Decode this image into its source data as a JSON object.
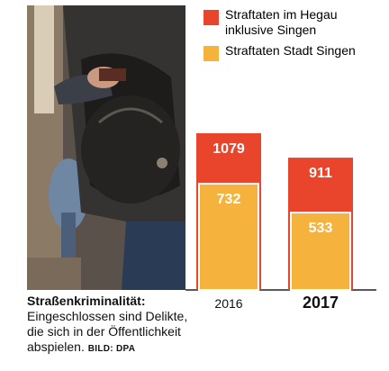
{
  "legend": [
    {
      "label": "Straftaten im Hegau inklusive Singen",
      "color": "#e8452c"
    },
    {
      "label": "Straftaten Stadt Singen",
      "color": "#f5b23c"
    }
  ],
  "caption": {
    "title": "Straßenkriminalität:",
    "text": "Eingeschlossen sind Delikte, die sich in der Öffentlichkeit abspielen.",
    "credit": "BILD: DPA"
  },
  "chart_data": {
    "type": "bar",
    "categories": [
      "2016",
      "2017"
    ],
    "series": [
      {
        "name": "Straftaten im Hegau inklusive Singen",
        "values": [
          1079,
          911
        ],
        "color": "#e8452c"
      },
      {
        "name": "Straftaten Stadt Singen",
        "values": [
          732,
          533
        ],
        "color": "#f5b23c"
      }
    ],
    "title": "",
    "xlabel": "",
    "ylabel": "",
    "ylim": [
      0,
      1079
    ],
    "grid": false,
    "legend_position": "top-right"
  }
}
